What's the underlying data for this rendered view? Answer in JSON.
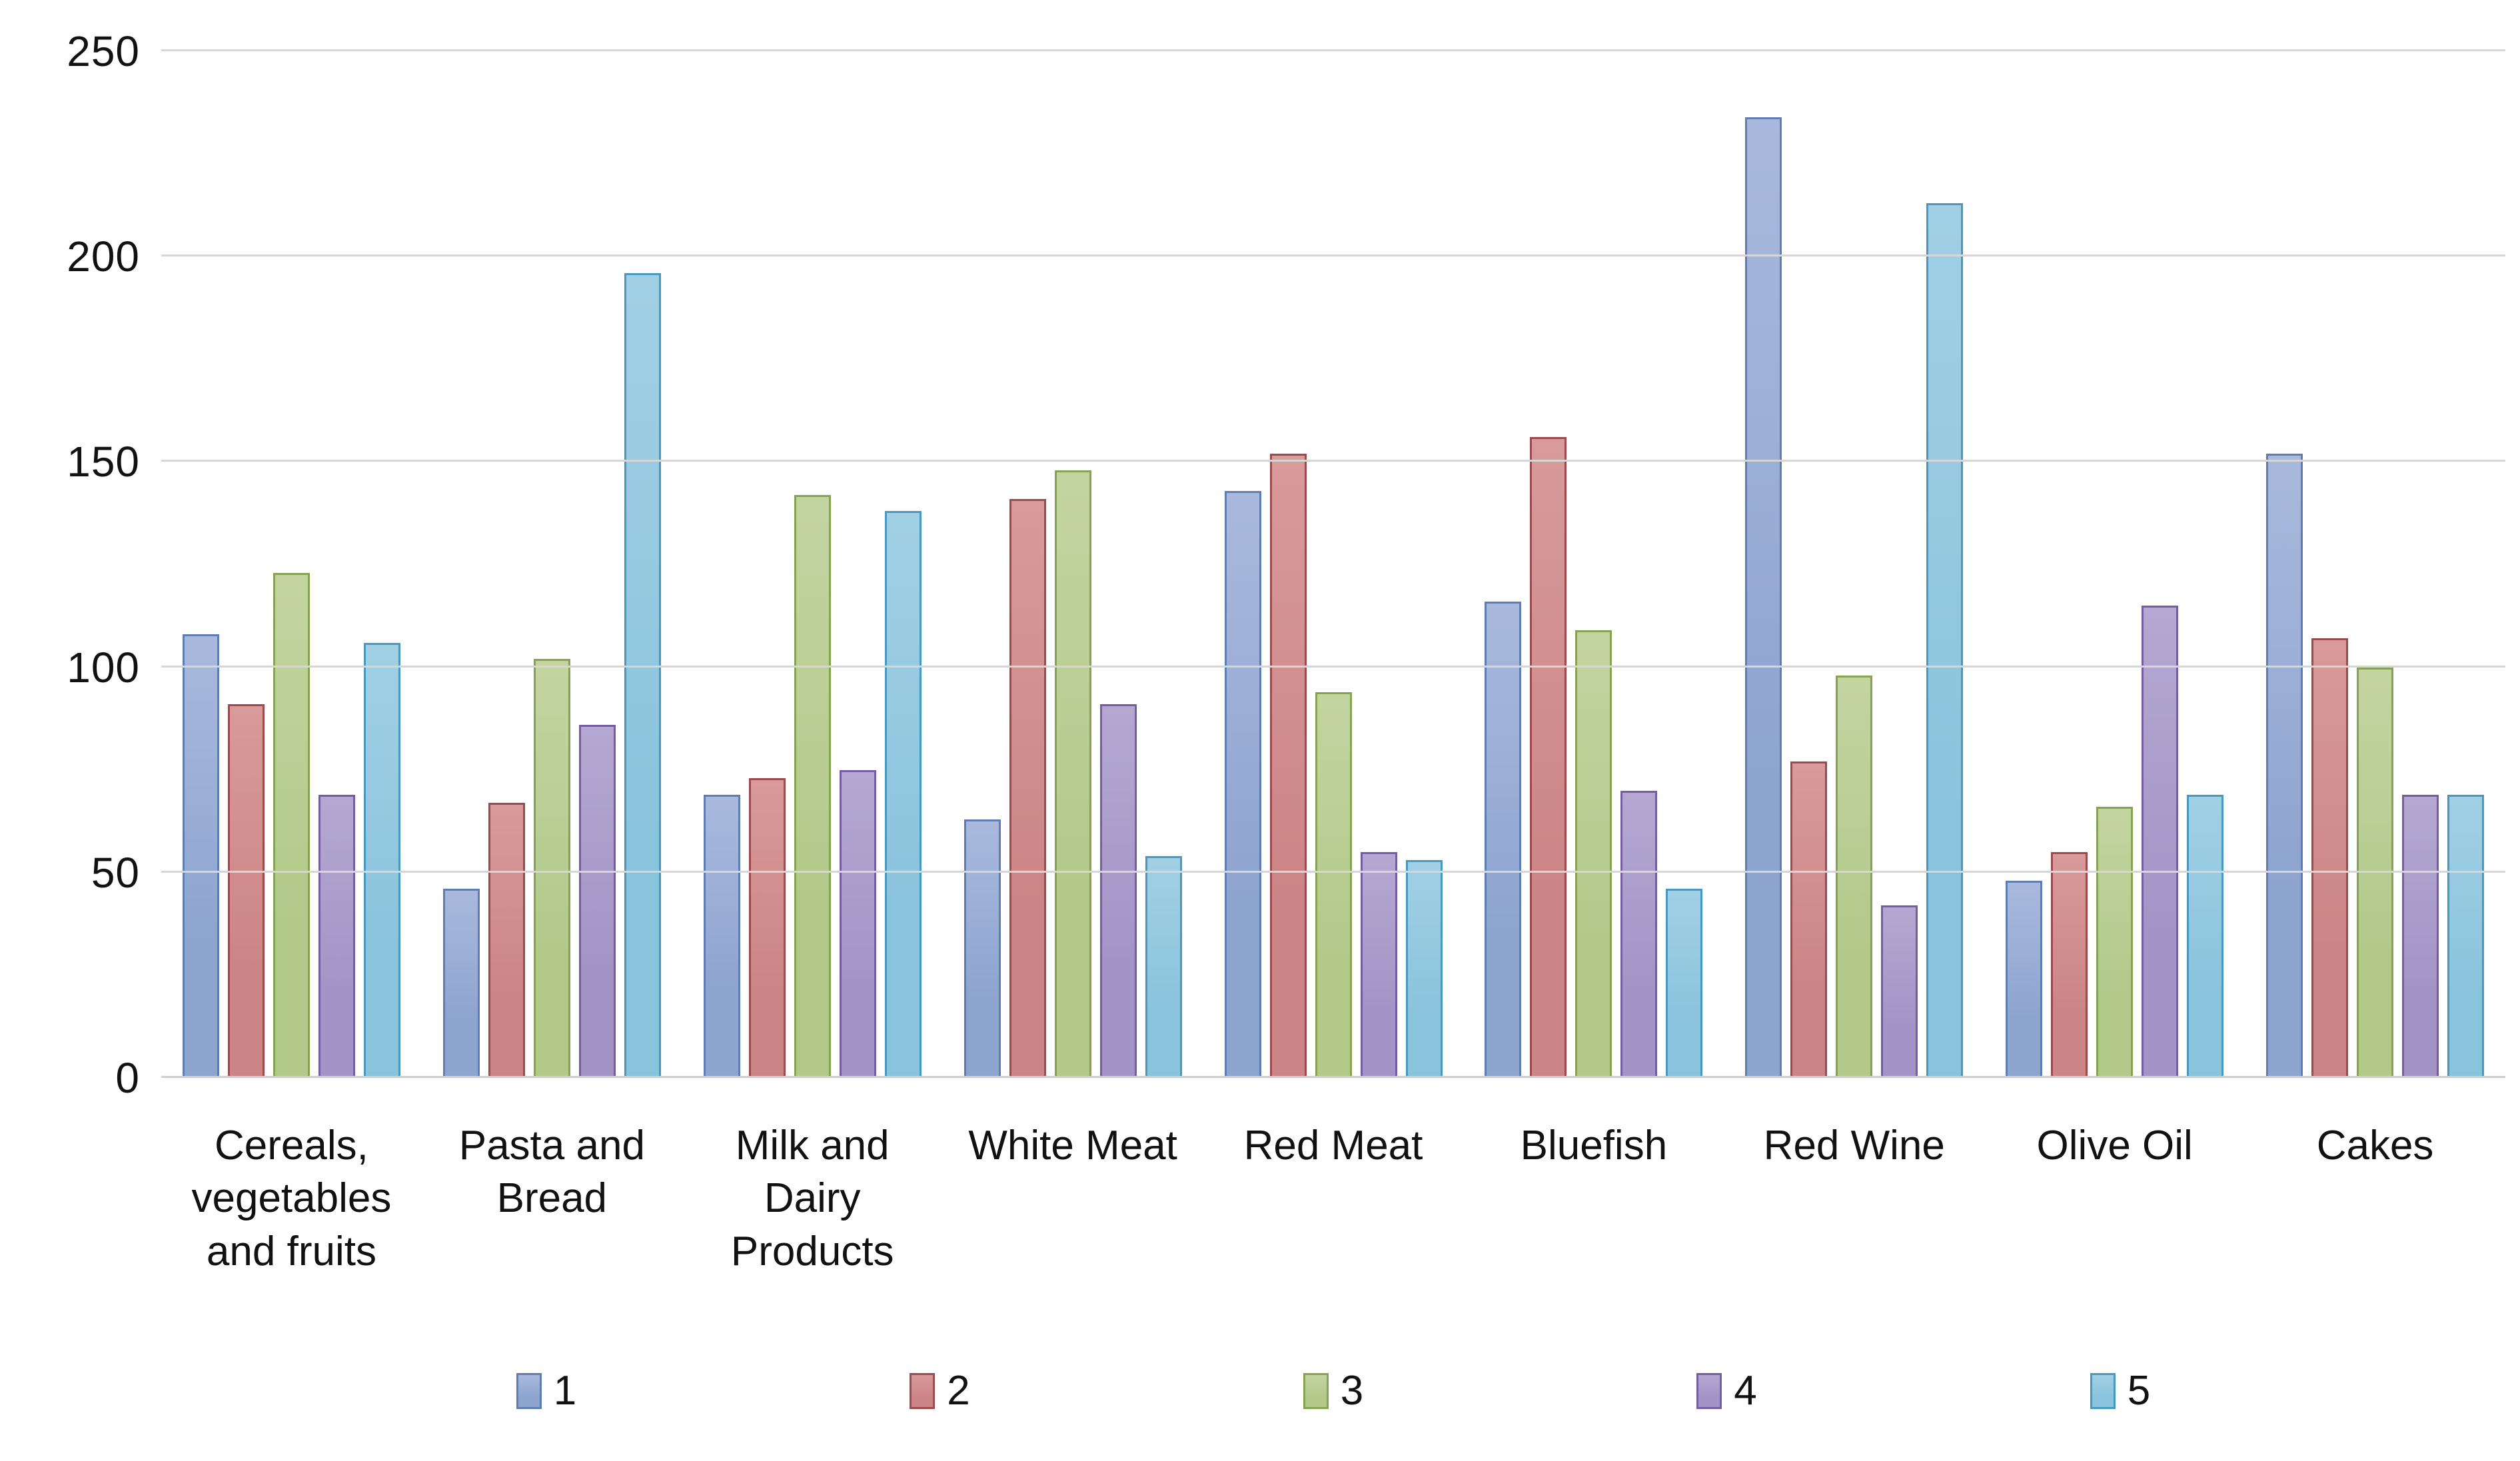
{
  "chart_data": {
    "type": "bar",
    "title": "",
    "xlabel": "",
    "ylabel": "",
    "ylim": [
      0,
      250
    ],
    "yticks": [
      0,
      50,
      100,
      150,
      200,
      250
    ],
    "grid": true,
    "legend_position": "bottom",
    "gridline_color": "#d6d6d6",
    "text_color": "#111111",
    "categories": [
      "Cereals, vegetables and fruits",
      "Pasta and Bread",
      "Milk and Dairy Products",
      "White Meat",
      "Red Meat",
      "Bluefish",
      "Red Wine",
      "Olive Oil",
      "Cakes"
    ],
    "series": [
      {
        "name": "1",
        "fill": "#8da4cf",
        "fill_light": "#a9b9dd",
        "border": "#5f7db1",
        "values": [
          108,
          46,
          69,
          63,
          143,
          116,
          234,
          48,
          152
        ]
      },
      {
        "name": "2",
        "fill": "#cc8586",
        "fill_light": "#d89a9a",
        "border": "#9c4a4d",
        "values": [
          91,
          67,
          73,
          141,
          152,
          156,
          77,
          55,
          107
        ]
      },
      {
        "name": "3",
        "fill": "#b2c98a",
        "fill_light": "#c3d4a1",
        "border": "#85a351",
        "values": [
          123,
          102,
          142,
          148,
          94,
          109,
          98,
          66,
          100
        ]
      },
      {
        "name": "4",
        "fill": "#a294c6",
        "fill_light": "#b4a8d2",
        "border": "#745da3",
        "values": [
          69,
          86,
          75,
          91,
          55,
          70,
          42,
          115,
          69
        ]
      },
      {
        "name": "5",
        "fill": "#8ac3dc",
        "fill_light": "#a1d0e5",
        "border": "#4898bf",
        "values": [
          106,
          196,
          138,
          54,
          53,
          46,
          213,
          69,
          69
        ]
      }
    ]
  }
}
